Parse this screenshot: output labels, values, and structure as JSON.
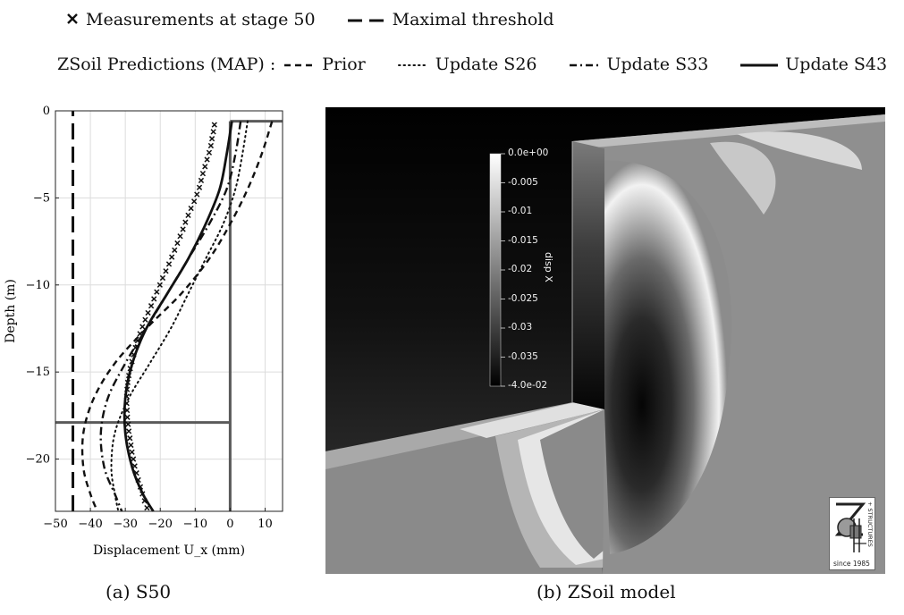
{
  "legend": {
    "row1": [
      {
        "label": "Measurements at stage 50",
        "symbol": "cross"
      },
      {
        "label": "Maximal threshold",
        "symbol": "long-dash"
      }
    ],
    "row2_prefix": "ZSoil Predictions (MAP) :",
    "row2": [
      {
        "label": "Prior",
        "symbol": "dashed"
      },
      {
        "label": "Update S26",
        "symbol": "dotted"
      },
      {
        "label": "Update S33",
        "symbol": "dash-dot"
      },
      {
        "label": "Update S43",
        "symbol": "solid"
      }
    ]
  },
  "captions": {
    "a": "(a) S50",
    "b": "(b) ZSoil model"
  },
  "chart_data": {
    "type": "line",
    "xlabel": "Displacement U_x (mm)",
    "ylabel": "Depth (m)",
    "xlim": [
      -50,
      15
    ],
    "ylim": [
      -23,
      0
    ],
    "xticks": [
      -50,
      -40,
      -30,
      -20,
      -10,
      0,
      10
    ],
    "yticks": [
      0,
      -5,
      -10,
      -15,
      -20
    ],
    "grid": true,
    "reference_lines": [
      {
        "name": "Maximal threshold",
        "orientation": "vertical",
        "x": -45,
        "style": "long-dash"
      },
      {
        "name": "wall",
        "orientation": "vertical",
        "x": 0,
        "y_range": [
          -23,
          -0.6
        ],
        "style": "solid-gray"
      },
      {
        "name": "wall top",
        "orientation": "horizontal",
        "y": -0.6,
        "x_range": [
          0,
          15
        ],
        "style": "solid-gray"
      },
      {
        "name": "excavation level",
        "orientation": "horizontal",
        "y": -17.9,
        "x_range": [
          -50,
          0
        ],
        "style": "solid-gray"
      }
    ],
    "series": [
      {
        "name": "Measurements at stage 50",
        "style": "cross",
        "points": [
          [
            -4.5,
            -0.8
          ],
          [
            -4.8,
            -1.2
          ],
          [
            -5.2,
            -1.6
          ],
          [
            -5.5,
            -2.0
          ],
          [
            -6,
            -2.4
          ],
          [
            -6.6,
            -2.8
          ],
          [
            -7.2,
            -3.2
          ],
          [
            -7.8,
            -3.6
          ],
          [
            -8.3,
            -4.0
          ],
          [
            -8.8,
            -4.4
          ],
          [
            -9.5,
            -4.8
          ],
          [
            -10.3,
            -5.2
          ],
          [
            -11.2,
            -5.6
          ],
          [
            -12,
            -6.0
          ],
          [
            -12.8,
            -6.4
          ],
          [
            -13.5,
            -6.8
          ],
          [
            -14.3,
            -7.2
          ],
          [
            -15.1,
            -7.6
          ],
          [
            -15.9,
            -8.0
          ],
          [
            -16.7,
            -8.4
          ],
          [
            -17.5,
            -8.8
          ],
          [
            -18.4,
            -9.2
          ],
          [
            -19.3,
            -9.6
          ],
          [
            -20.1,
            -10.0
          ],
          [
            -21,
            -10.4
          ],
          [
            -21.8,
            -10.8
          ],
          [
            -22.6,
            -11.2
          ],
          [
            -23.5,
            -11.6
          ],
          [
            -24.3,
            -12.0
          ],
          [
            -25.1,
            -12.4
          ],
          [
            -25.8,
            -12.8
          ],
          [
            -26.5,
            -13.2
          ],
          [
            -27.1,
            -13.6
          ],
          [
            -27.6,
            -14.0
          ],
          [
            -28.1,
            -14.4
          ],
          [
            -28.6,
            -14.8
          ],
          [
            -29,
            -15.2
          ],
          [
            -29.3,
            -15.6
          ],
          [
            -29.5,
            -16.0
          ],
          [
            -29.6,
            -16.4
          ],
          [
            -29.6,
            -16.8
          ],
          [
            -29.5,
            -17.2
          ],
          [
            -29.4,
            -17.6
          ],
          [
            -29.2,
            -18.0
          ],
          [
            -29,
            -18.4
          ],
          [
            -28.7,
            -18.8
          ],
          [
            -28.4,
            -19.2
          ],
          [
            -28.1,
            -19.6
          ],
          [
            -27.7,
            -20.0
          ],
          [
            -27.3,
            -20.4
          ],
          [
            -26.8,
            -20.8
          ],
          [
            -26.3,
            -21.2
          ],
          [
            -25.7,
            -21.6
          ],
          [
            -25.1,
            -22.0
          ],
          [
            -24.5,
            -22.4
          ],
          [
            -23.8,
            -22.8
          ]
        ]
      },
      {
        "name": "Prior",
        "style": "dashed",
        "points": [
          [
            12,
            -0.6
          ],
          [
            9,
            -2.5
          ],
          [
            5,
            -4.5
          ],
          [
            0,
            -6.5
          ],
          [
            -6,
            -8.5
          ],
          [
            -14,
            -10.5
          ],
          [
            -24,
            -12.5
          ],
          [
            -33,
            -14.5
          ],
          [
            -39,
            -16.5
          ],
          [
            -42,
            -18.5
          ],
          [
            -42,
            -20.5
          ],
          [
            -40,
            -22
          ],
          [
            -38,
            -23
          ]
        ]
      },
      {
        "name": "Update S26",
        "style": "dotted",
        "points": [
          [
            5,
            -0.6
          ],
          [
            3.5,
            -2.5
          ],
          [
            1.5,
            -4.5
          ],
          [
            -2,
            -6.5
          ],
          [
            -7,
            -8.5
          ],
          [
            -12,
            -10.5
          ],
          [
            -17,
            -12.5
          ],
          [
            -23,
            -14.5
          ],
          [
            -29,
            -16.5
          ],
          [
            -33,
            -18.5
          ],
          [
            -34,
            -20.5
          ],
          [
            -33,
            -22
          ],
          [
            -32,
            -23
          ]
        ]
      },
      {
        "name": "Update S33",
        "style": "dash-dot",
        "points": [
          [
            3,
            -0.6
          ],
          [
            1.5,
            -2.5
          ],
          [
            -1,
            -4.5
          ],
          [
            -6,
            -6.5
          ],
          [
            -12,
            -8.5
          ],
          [
            -18,
            -10.5
          ],
          [
            -24,
            -12.5
          ],
          [
            -30,
            -14.5
          ],
          [
            -35,
            -16.5
          ],
          [
            -37,
            -18.5
          ],
          [
            -36,
            -20.5
          ],
          [
            -33,
            -22
          ],
          [
            -31,
            -23
          ]
        ]
      },
      {
        "name": "Update S43",
        "style": "solid",
        "points": [
          [
            0.5,
            -0.6
          ],
          [
            -1,
            -2.5
          ],
          [
            -3,
            -4.5
          ],
          [
            -7,
            -6.5
          ],
          [
            -12,
            -8.5
          ],
          [
            -18,
            -10.5
          ],
          [
            -24,
            -12.5
          ],
          [
            -28,
            -14.5
          ],
          [
            -30,
            -16.5
          ],
          [
            -30,
            -18.5
          ],
          [
            -28,
            -20.5
          ],
          [
            -25,
            -22
          ],
          [
            -22,
            -23
          ]
        ]
      }
    ]
  },
  "model": {
    "colorbar_title": "disp X",
    "colorbar_ticks": [
      "0.0e+00",
      "-0.005",
      "-0.01",
      "-0.015",
      "-0.02",
      "-0.025",
      "-0.03",
      "-0.035",
      "-4.0e-02"
    ],
    "logo_text": "since 1985",
    "logo_side_text": "+ STRUCTURES"
  }
}
